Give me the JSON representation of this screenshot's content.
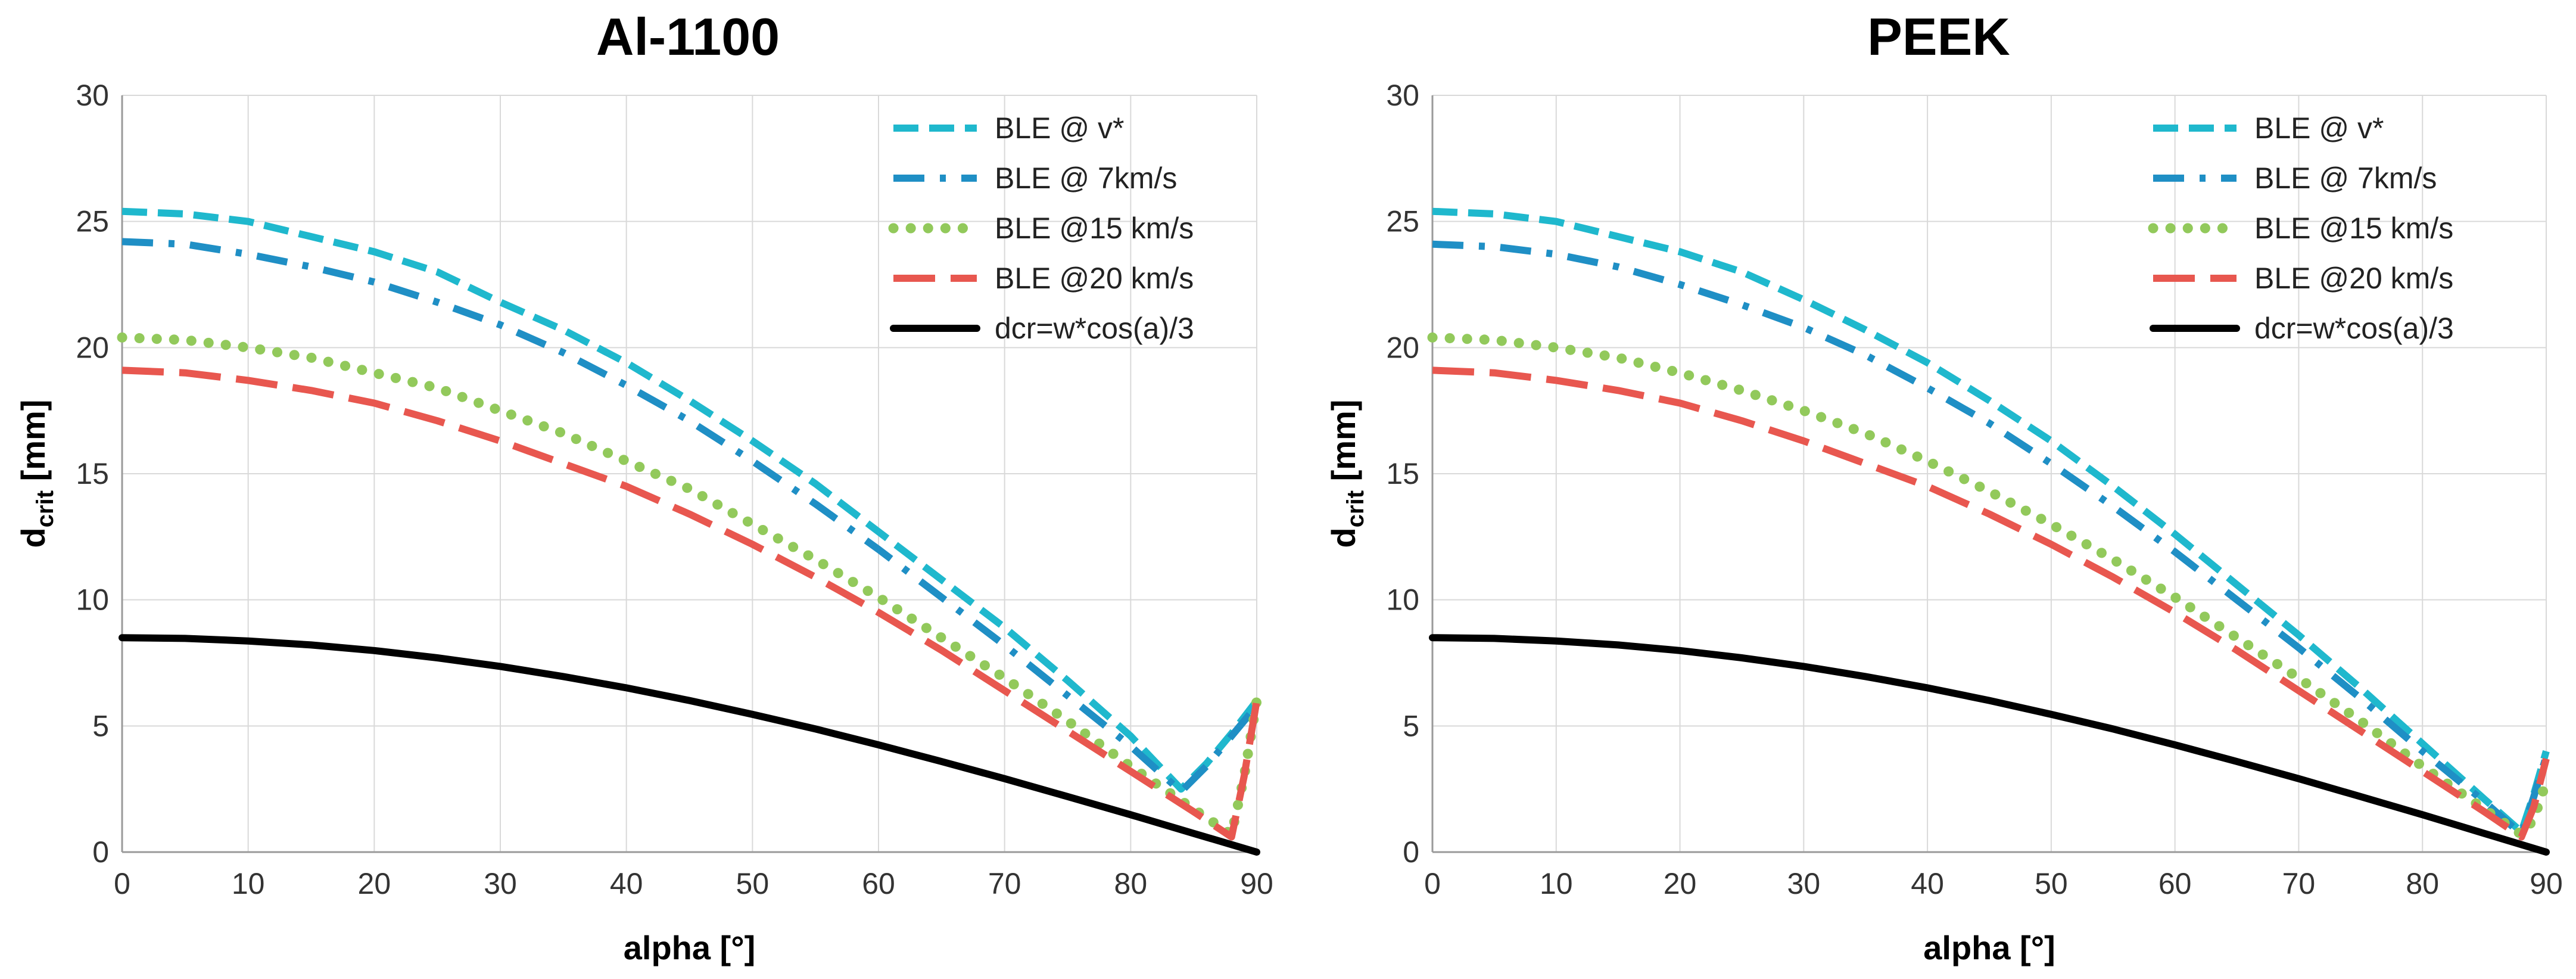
{
  "chart_data": [
    {
      "type": "line",
      "title": "Al-1100",
      "xlabel": "alpha [°]",
      "ylabel": "d",
      "ylabel_sub": "crit",
      "ylabel_unit": " [mm]",
      "xlim": [
        0,
        90
      ],
      "ylim": [
        0,
        30
      ],
      "xticks": [
        0,
        10,
        20,
        30,
        40,
        50,
        60,
        70,
        80,
        90
      ],
      "yticks": [
        0,
        5,
        10,
        15,
        20,
        25,
        30
      ],
      "grid": true,
      "legend_position": "top-right",
      "series": [
        {
          "name": "BLE @ v*",
          "color": "#1FB8CD",
          "style": "dashed",
          "x": [
            0,
            5,
            10,
            15,
            20,
            25,
            30,
            35,
            40,
            45,
            50,
            55,
            60,
            65,
            70,
            75,
            80,
            84,
            86,
            88,
            90
          ],
          "y": [
            25.4,
            25.3,
            25.0,
            24.4,
            23.8,
            23.0,
            21.8,
            20.7,
            19.4,
            17.9,
            16.3,
            14.6,
            12.7,
            10.8,
            8.9,
            6.8,
            4.6,
            2.5,
            3.5,
            4.7,
            6.0
          ]
        },
        {
          "name": "BLE @ 7km/s",
          "color": "#1F8FC5",
          "style": "dashdot",
          "x": [
            0,
            5,
            10,
            15,
            20,
            25,
            30,
            35,
            40,
            45,
            50,
            55,
            60,
            65,
            70,
            75,
            80,
            84,
            86,
            88,
            90
          ],
          "y": [
            24.2,
            24.1,
            23.7,
            23.2,
            22.6,
            21.8,
            20.9,
            19.8,
            18.5,
            17.1,
            15.5,
            13.8,
            12.0,
            10.1,
            8.2,
            6.2,
            4.2,
            2.4,
            3.4,
            4.6,
            5.8
          ]
        },
        {
          "name": "BLE @15 km/s",
          "color": "#92C95B",
          "style": "dotted",
          "x": [
            0,
            5,
            10,
            15,
            20,
            25,
            30,
            35,
            40,
            45,
            50,
            55,
            60,
            65,
            70,
            75,
            80,
            85,
            88,
            89,
            90
          ],
          "y": [
            20.4,
            20.3,
            20.0,
            19.6,
            19.0,
            18.4,
            17.5,
            16.6,
            15.5,
            14.4,
            13.0,
            11.6,
            10.1,
            8.5,
            6.9,
            5.2,
            3.4,
            1.7,
            0.7,
            3.0,
            6.0
          ]
        },
        {
          "name": "BLE @20 km/s",
          "color": "#E8574F",
          "style": "longdash",
          "x": [
            0,
            5,
            10,
            15,
            20,
            25,
            30,
            35,
            40,
            45,
            50,
            55,
            60,
            65,
            70,
            75,
            80,
            85,
            88,
            89,
            90
          ],
          "y": [
            19.1,
            19.0,
            18.7,
            18.3,
            17.8,
            17.1,
            16.3,
            15.4,
            14.5,
            13.4,
            12.2,
            10.9,
            9.5,
            8.0,
            6.4,
            4.8,
            3.2,
            1.6,
            0.6,
            3.0,
            6.0
          ]
        },
        {
          "name": "dcr=w*cos(a)/3",
          "color": "#000000",
          "style": "solid",
          "x": [
            0,
            5,
            10,
            15,
            20,
            25,
            30,
            35,
            40,
            45,
            50,
            55,
            60,
            65,
            70,
            75,
            80,
            85,
            90
          ],
          "y": [
            8.5,
            8.47,
            8.37,
            8.21,
            7.99,
            7.7,
            7.36,
            6.96,
            6.51,
            6.01,
            5.46,
            4.88,
            4.25,
            3.59,
            2.91,
            2.2,
            1.48,
            0.74,
            0.0
          ]
        }
      ]
    },
    {
      "type": "line",
      "title": "PEEK",
      "xlabel": "alpha [°]",
      "ylabel": "d",
      "ylabel_sub": "crit",
      "ylabel_unit": " [mm]",
      "xlim": [
        0,
        90
      ],
      "ylim": [
        0,
        30
      ],
      "xticks": [
        0,
        10,
        20,
        30,
        40,
        50,
        60,
        70,
        80,
        90
      ],
      "yticks": [
        0,
        5,
        10,
        15,
        20,
        25,
        30
      ],
      "grid": true,
      "legend_position": "top-right",
      "series": [
        {
          "name": "BLE @ v*",
          "color": "#1FB8CD",
          "style": "dashed",
          "x": [
            0,
            5,
            10,
            15,
            20,
            25,
            30,
            35,
            40,
            45,
            50,
            55,
            60,
            65,
            70,
            75,
            80,
            85,
            88,
            89,
            90
          ],
          "y": [
            25.4,
            25.3,
            25.0,
            24.4,
            23.8,
            23.0,
            21.9,
            20.7,
            19.4,
            17.9,
            16.3,
            14.5,
            12.6,
            10.6,
            8.6,
            6.5,
            4.3,
            2.1,
            0.8,
            2.3,
            4.0
          ]
        },
        {
          "name": "BLE @ 7km/s",
          "color": "#1F8FC5",
          "style": "dashdot",
          "x": [
            0,
            5,
            10,
            15,
            20,
            25,
            30,
            35,
            40,
            45,
            50,
            55,
            60,
            65,
            70,
            75,
            80,
            85,
            88,
            89,
            90
          ],
          "y": [
            24.1,
            24.0,
            23.7,
            23.2,
            22.5,
            21.7,
            20.8,
            19.7,
            18.4,
            17.0,
            15.4,
            13.7,
            11.9,
            10.0,
            8.1,
            6.1,
            4.0,
            2.0,
            0.7,
            2.2,
            3.8
          ]
        },
        {
          "name": "BLE @15 km/s",
          "color": "#92C95B",
          "style": "dotted",
          "x": [
            0,
            5,
            10,
            15,
            20,
            25,
            30,
            35,
            40,
            45,
            50,
            55,
            60,
            65,
            70,
            75,
            80,
            85,
            88,
            89,
            90
          ],
          "y": [
            20.4,
            20.3,
            20.0,
            19.6,
            19.0,
            18.3,
            17.5,
            16.6,
            15.5,
            14.3,
            13.0,
            11.6,
            10.1,
            8.5,
            6.9,
            5.2,
            3.4,
            1.7,
            0.7,
            1.3,
            2.8
          ]
        },
        {
          "name": "BLE @20 km/s",
          "color": "#E8574F",
          "style": "longdash",
          "x": [
            0,
            5,
            10,
            15,
            20,
            25,
            30,
            35,
            40,
            45,
            50,
            55,
            60,
            65,
            70,
            75,
            80,
            85,
            88,
            89,
            90
          ],
          "y": [
            19.1,
            19.0,
            18.7,
            18.3,
            17.8,
            17.1,
            16.3,
            15.4,
            14.5,
            13.4,
            12.2,
            10.9,
            9.5,
            8.0,
            6.4,
            4.8,
            3.2,
            1.6,
            0.6,
            1.8,
            3.7
          ]
        },
        {
          "name": "dcr=w*cos(a)/3",
          "color": "#000000",
          "style": "solid",
          "x": [
            0,
            5,
            10,
            15,
            20,
            25,
            30,
            35,
            40,
            45,
            50,
            55,
            60,
            65,
            70,
            75,
            80,
            85,
            90
          ],
          "y": [
            8.5,
            8.47,
            8.37,
            8.21,
            7.99,
            7.7,
            7.36,
            6.96,
            6.51,
            6.01,
            5.46,
            4.88,
            4.25,
            3.59,
            2.91,
            2.2,
            1.48,
            0.74,
            0.0
          ]
        }
      ]
    }
  ]
}
